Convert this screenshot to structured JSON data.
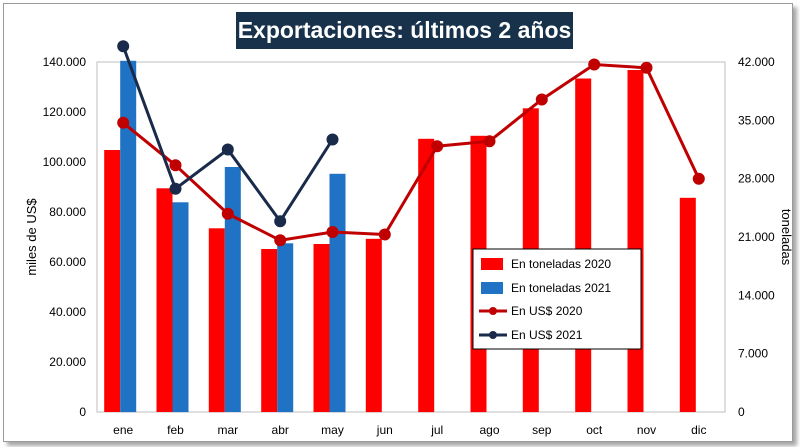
{
  "chart_data": {
    "type": "bar",
    "title": "Exportaciones: últimos 2 años",
    "categories": [
      "ene",
      "feb",
      "mar",
      "abr",
      "may",
      "jun",
      "jul",
      "ago",
      "sep",
      "oct",
      "nov",
      "dic"
    ],
    "ylabel": "miles de US$",
    "y2label": "toneladas",
    "ylim": [
      0,
      140000
    ],
    "y2lim": [
      0,
      42000
    ],
    "y_ticks": [
      "0",
      "20.000",
      "40.000",
      "60.000",
      "80.000",
      "100.000",
      "120.000",
      "140.000"
    ],
    "y2_ticks": [
      "0",
      "7.000",
      "14.000",
      "21.000",
      "28.000",
      "35.000",
      "42.000"
    ],
    "grid": false,
    "legend_position": "lower-right",
    "series": [
      {
        "name": "En toneladas 2020",
        "kind": "bar",
        "axis": "left",
        "color": "#ff0000",
        "values": [
          104800,
          89500,
          73500,
          65200,
          67200,
          69300,
          109300,
          110500,
          121500,
          133400,
          136800,
          85700
        ]
      },
      {
        "name": "En toneladas 2021",
        "kind": "bar",
        "axis": "left",
        "color": "#1f72c4",
        "values": [
          140500,
          83900,
          98000,
          67500,
          95300,
          null,
          null,
          null,
          null,
          null,
          null,
          null
        ]
      },
      {
        "name": "En US$ 2020",
        "kind": "line",
        "axis": "right",
        "color": "#c00000",
        "values": [
          34700,
          29600,
          23800,
          20600,
          21600,
          21300,
          31900,
          32500,
          37500,
          41700,
          41300,
          28000
        ]
      },
      {
        "name": "En US$ 2021",
        "kind": "line",
        "axis": "right",
        "color": "#1a2a4a",
        "values": [
          43900,
          26800,
          31500,
          22900,
          32700,
          null,
          null,
          null,
          null,
          null,
          null,
          null
        ]
      }
    ]
  }
}
